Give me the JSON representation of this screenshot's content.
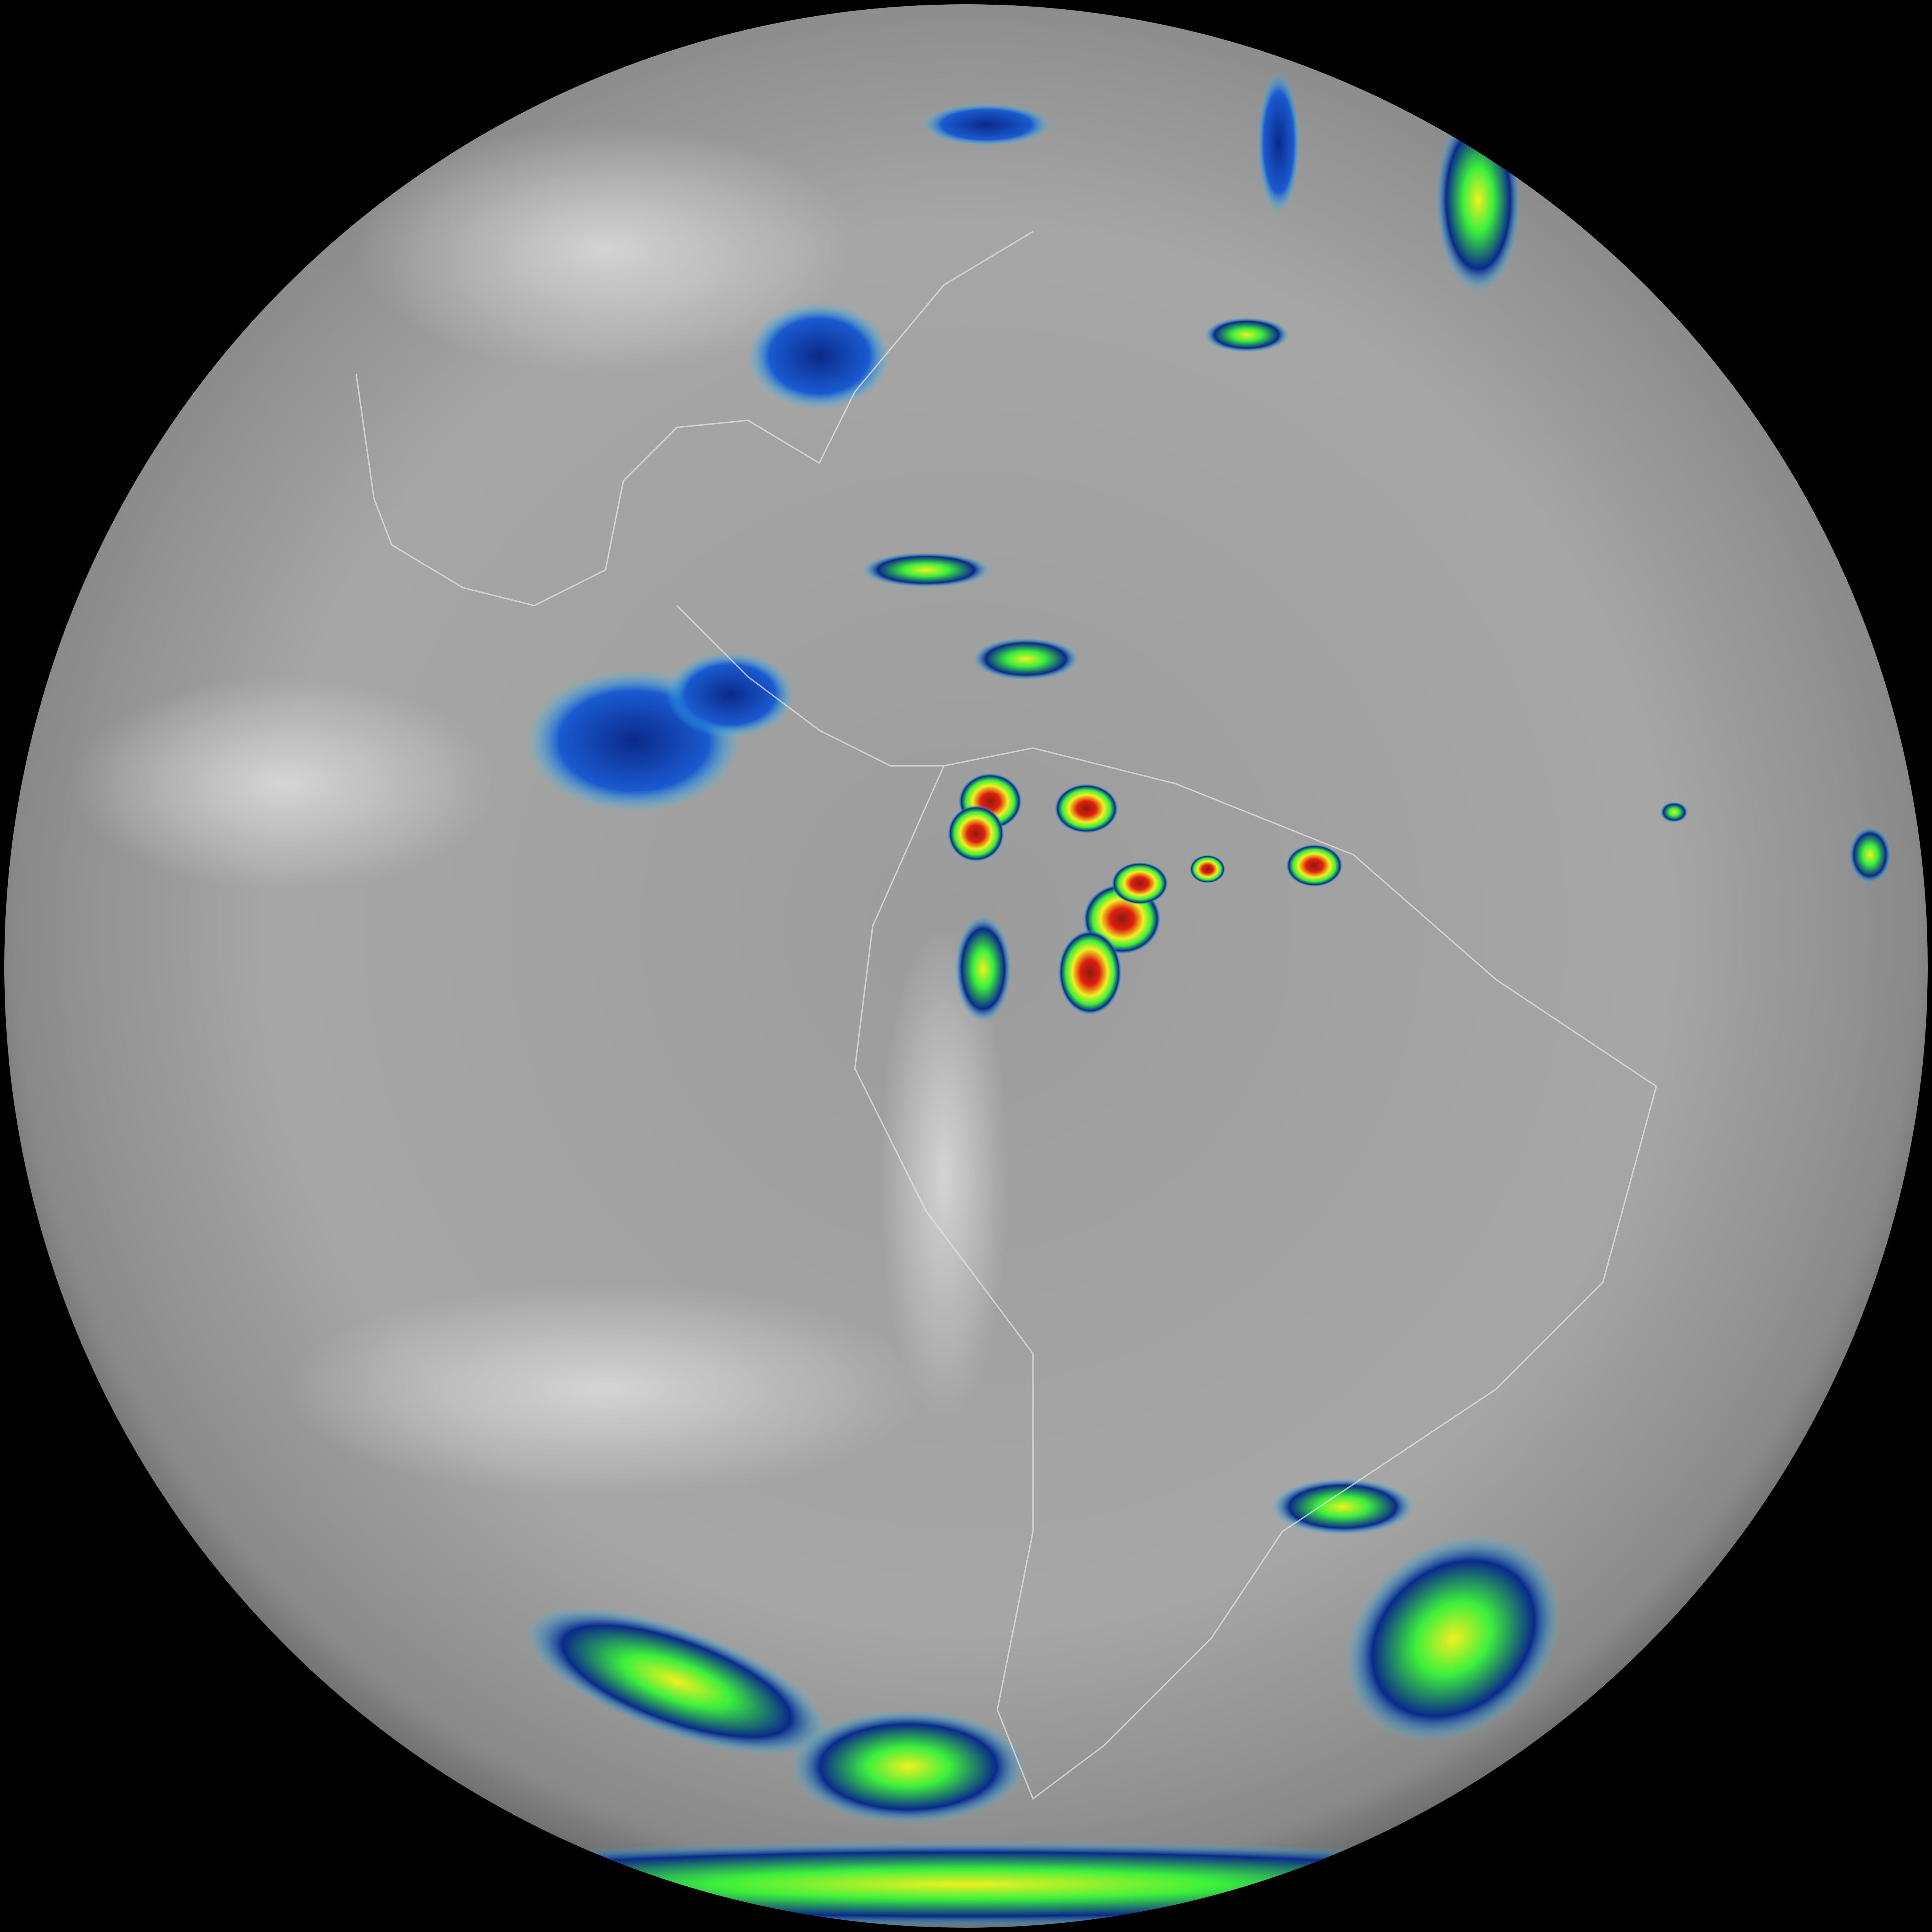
{
  "image": {
    "kind": "full-disk infrared satellite view of the Western Hemisphere",
    "background_color": "#000000",
    "earth_gray_light": "#b4b4b4",
    "earth_gray_dark": "#6e6e6e",
    "border_line_color": "#e6e6e6"
  },
  "ir_color_scale": {
    "cold_blue": "#0a2a8a",
    "cyan": "#3ac8f0",
    "green": "#3cf03c",
    "yellow": "#f0f020",
    "red": "#e02010",
    "dark_red": "#8a1a10"
  }
}
